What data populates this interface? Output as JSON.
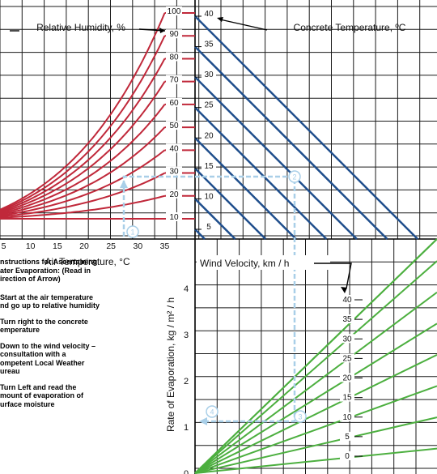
{
  "chart_data": {
    "type": "line",
    "title": "",
    "panels": {
      "relative_humidity": {
        "label": "Relative Humidity, %",
        "series_values": [
          10,
          20,
          30,
          40,
          50,
          60,
          70,
          80,
          90,
          100
        ],
        "tick_labels": [
          "10",
          "20",
          "30",
          "40",
          "50",
          "60",
          "70",
          "80",
          "90",
          "100"
        ],
        "color": "#c0283a"
      },
      "air_temperature": {
        "xlabel": "Air Temperature, °C",
        "ticks": [
          5,
          10,
          15,
          20,
          25,
          30,
          35
        ],
        "tick_labels": [
          "5",
          "10",
          "15",
          "20",
          "25",
          "30",
          "35"
        ]
      },
      "concrete_temperature": {
        "label": "Concrete Temperature, ºC",
        "series_values": [
          5,
          10,
          15,
          20,
          25,
          30,
          35,
          40
        ],
        "tick_labels": [
          "5",
          "10",
          "15",
          "20",
          "25",
          "30",
          "35",
          "40"
        ],
        "color": "#1f4e8c"
      },
      "wind_velocity": {
        "label": "Wind Velocity, km / h",
        "series_values": [
          0,
          5,
          10,
          15,
          20,
          25,
          30,
          35,
          40
        ],
        "tick_labels": [
          "0",
          "5",
          "10",
          "15",
          "20",
          "25",
          "30",
          "35",
          "40"
        ],
        "color": "#4caf3f"
      },
      "evaporation_rate": {
        "ylabel": "Rate of Evaporation, kg / m² / h",
        "ticks": [
          0,
          1,
          2,
          3,
          4
        ],
        "tick_labels": [
          "0",
          "1",
          "2",
          "3",
          "4"
        ],
        "ylim": [
          0,
          4
        ]
      }
    },
    "example_path_steps": [
      "1",
      "2",
      "3",
      "4"
    ],
    "grid": true,
    "colors": {
      "grid": "#1a1a1a",
      "example_path": "#a9cfe8",
      "step_circle": "#a9cfe8"
    }
  },
  "instructions": {
    "heading": "nstructions  for Ascertaining\nater Evaporation: (Read in\nirection of Arrow)",
    "step1": "Start at the air temperature\nnd go up to relative humidity",
    "step2": "Turn right to the concrete\nemperature",
    "step3": "Down to the wind velocity –\n consultation with a\nompetent Local Weather\nureau",
    "step4": "Turn Left and read the\nmount of evaporation of\nurface moisture"
  }
}
